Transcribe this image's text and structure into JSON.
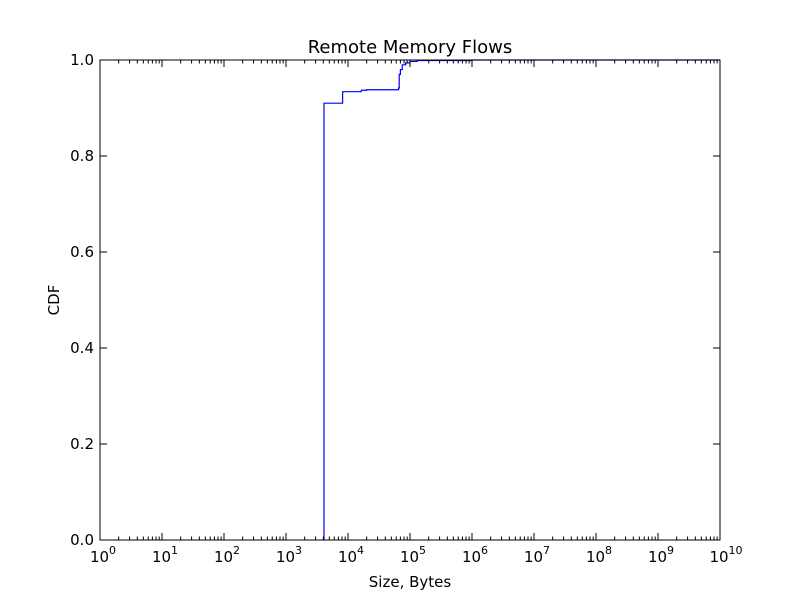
{
  "chart_data": {
    "type": "line",
    "title": "Remote Memory Flows",
    "xlabel": "Size, Bytes",
    "ylabel": "CDF",
    "x_scale": "log",
    "xlim": [
      1,
      10000000000
    ],
    "ylim": [
      0.0,
      1.0
    ],
    "x_ticks": [
      {
        "base": "10",
        "exp": "0"
      },
      {
        "base": "10",
        "exp": "1"
      },
      {
        "base": "10",
        "exp": "2"
      },
      {
        "base": "10",
        "exp": "3"
      },
      {
        "base": "10",
        "exp": "4"
      },
      {
        "base": "10",
        "exp": "5"
      },
      {
        "base": "10",
        "exp": "6"
      },
      {
        "base": "10",
        "exp": "7"
      },
      {
        "base": "10",
        "exp": "8"
      },
      {
        "base": "10",
        "exp": "9"
      },
      {
        "base": "10",
        "exp": "10"
      }
    ],
    "y_ticks": [
      "0.0",
      "0.2",
      "0.4",
      "0.6",
      "0.8",
      "1.0"
    ],
    "grid": false,
    "step": true,
    "series": [
      {
        "color": "#0000ff",
        "x": [
          4096,
          4096,
          8192,
          16384,
          20000,
          65536,
          67000,
          70000,
          75000,
          85000,
          100000,
          131072,
          1000000,
          10000000000
        ],
        "y": [
          0.0,
          0.91,
          0.934,
          0.937,
          0.938,
          0.942,
          0.97,
          0.98,
          0.99,
          0.994,
          0.997,
          0.999,
          1.0,
          1.0
        ]
      }
    ]
  }
}
